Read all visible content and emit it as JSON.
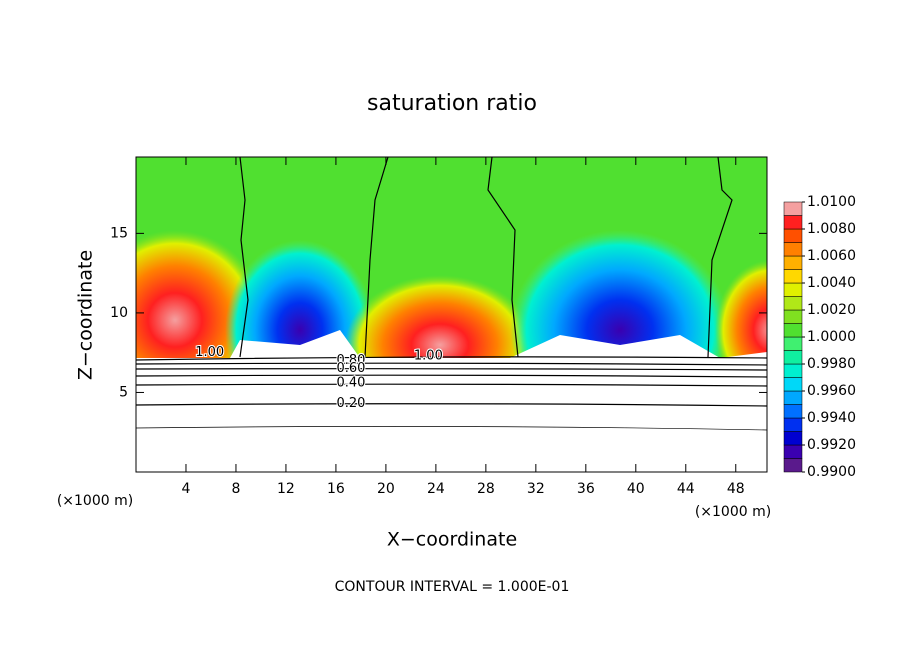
{
  "chart_data": {
    "type": "contour",
    "title": "saturation ratio",
    "x_label": "X−coordinate",
    "y_label": "Z−coordinate",
    "x_unit": "(×1000 m)",
    "y_unit": "(×1000 m)",
    "footer": "CONTOUR INTERVAL = 1.000E-01",
    "xlim": [
      0,
      50.5
    ],
    "ylim": [
      0,
      19.8
    ],
    "xticks": [
      4,
      8,
      12,
      16,
      20,
      24,
      28,
      32,
      36,
      40,
      44,
      48
    ],
    "yticks": [
      5,
      10,
      15
    ],
    "colorbar": {
      "clim": [
        0.99,
        1.01
      ],
      "colors": [
        "#5a1a8c",
        "#3a00b0",
        "#0000d0",
        "#0030f0",
        "#0070ff",
        "#00a8ff",
        "#00d8f8",
        "#00f0d0",
        "#10f0a0",
        "#40f070",
        "#50e030",
        "#80e020",
        "#b0e818",
        "#e0f000",
        "#ffd800",
        "#ffb000",
        "#ff8000",
        "#ff5000",
        "#ff2020",
        "#f4a0a0"
      ],
      "ticks": [
        {
          "value": 0.99,
          "label": "0.9900"
        },
        {
          "value": 0.992,
          "label": "0.9920"
        },
        {
          "value": 0.994,
          "label": "0.9940"
        },
        {
          "value": 0.996,
          "label": "0.9960"
        },
        {
          "value": 0.998,
          "label": "0.9980"
        },
        {
          "value": 1.0,
          "label": "1.0000"
        },
        {
          "value": 1.002,
          "label": "1.0020"
        },
        {
          "value": 1.004,
          "label": "1.0040"
        },
        {
          "value": 1.006,
          "label": "1.0060"
        },
        {
          "value": 1.008,
          "label": "1.0080"
        },
        {
          "value": 1.01,
          "label": "1.0100"
        }
      ]
    },
    "contour_labels": [
      {
        "level": {
          "value": 1.0,
          "label": "1.00"
        },
        "x": 5.9,
        "y": 7.5
      },
      {
        "level": {
          "value": 0.8,
          "label": "0.80"
        },
        "x": 17.2,
        "y": 7.0
      },
      {
        "level": {
          "value": 1.0,
          "label": "1.00"
        },
        "x": 23.4,
        "y": 7.3
      },
      {
        "level": {
          "value": 0.6,
          "label": "0.60"
        },
        "x": 17.2,
        "y": 6.5
      },
      {
        "level": {
          "value": 0.4,
          "label": "0.40"
        },
        "x": 17.2,
        "y": 5.6
      },
      {
        "level": {
          "value": 0.2,
          "label": "0.20"
        },
        "x": 17.2,
        "y": 4.3
      }
    ]
  }
}
